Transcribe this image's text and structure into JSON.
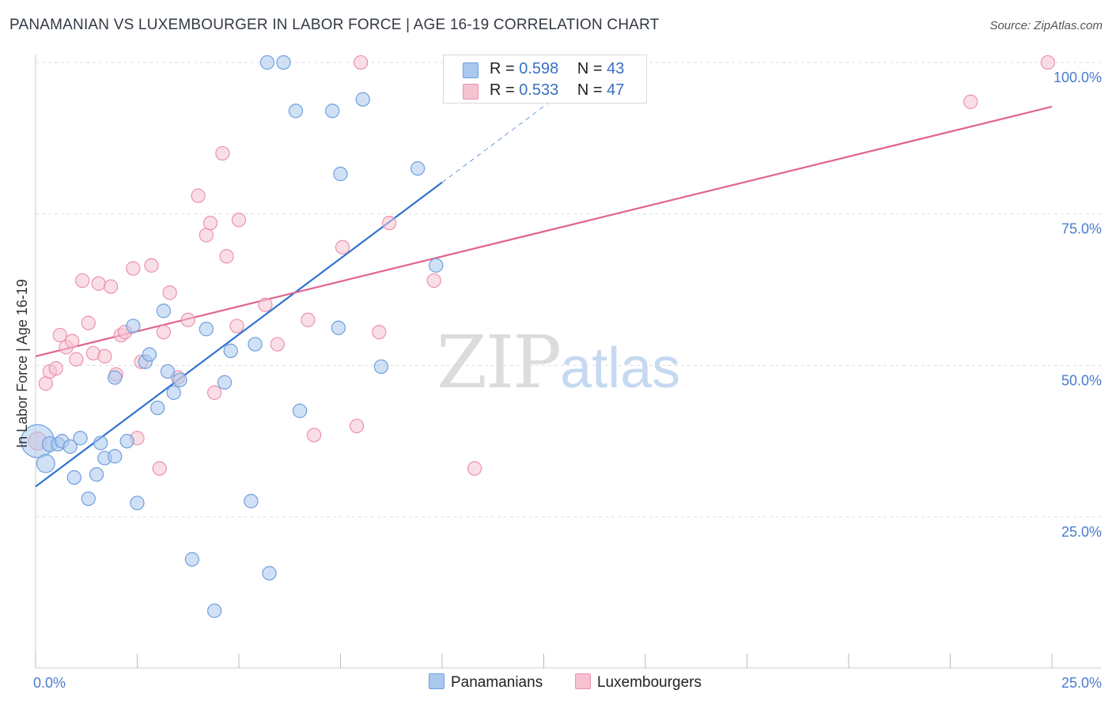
{
  "header": {
    "title": "PANAMANIAN VS LUXEMBOURGER IN LABOR FORCE | AGE 16-19 CORRELATION CHART",
    "source": "Source: ZipAtlas.com"
  },
  "watermark": {
    "zip": "ZIP",
    "atlas": "atlas"
  },
  "legend": {
    "rows": [
      {
        "r_label": "R = ",
        "r_value": "0.598",
        "n_label": "N = ",
        "n_value": "43",
        "color": "#a9c8ef"
      },
      {
        "r_label": "R = ",
        "r_value": "0.533",
        "n_label": "N = ",
        "n_value": "47",
        "color": "#f6bfd0"
      }
    ]
  },
  "bottom_legend": {
    "series1": "Panamanians",
    "series2": "Luxembourgers"
  },
  "colors": {
    "blue_fill": "#a9c8ef",
    "blue_stroke": "#6f9fdc",
    "blue_line": "#2f72d0",
    "pink_fill": "#f6c2d2",
    "pink_stroke": "#ec92ad",
    "pink_line": "#e0648f",
    "axis_tick": "#4a7bd0",
    "grid": "#dddddd"
  },
  "chart_data": {
    "type": "scatter",
    "title": "PANAMANIAN VS LUXEMBOURGER IN LABOR FORCE | AGE 16-19 CORRELATION CHART",
    "xlabel": "",
    "ylabel": "In Labor Force | Age 16-19",
    "xlim": [
      0,
      25
    ],
    "ylim": [
      0,
      105
    ],
    "x_tick_labels": [
      "0.0%",
      "25.0%"
    ],
    "y_ticks": [
      25,
      50,
      75,
      100
    ],
    "y_tick_labels": [
      "25.0%",
      "50.0%",
      "75.0%",
      "100.0%"
    ],
    "series": [
      {
        "name": "Panamanians",
        "R": 0.598,
        "N": 43,
        "trend": {
          "x0": 0,
          "y0": 30.0,
          "x1": 10,
          "y1": 80.2,
          "dash_to_x": 13
        },
        "points": [
          [
            0.05,
            37.5,
            22
          ],
          [
            0.25,
            33.8,
            12
          ],
          [
            0.35,
            37.0,
            10
          ],
          [
            0.55,
            37.0,
            9
          ],
          [
            0.65,
            37.5,
            9
          ],
          [
            0.85,
            36.6,
            9
          ],
          [
            0.95,
            31.5,
            9
          ],
          [
            1.1,
            38.0,
            9
          ],
          [
            1.3,
            28.0,
            9
          ],
          [
            1.5,
            32.0,
            9
          ],
          [
            1.6,
            37.2,
            9
          ],
          [
            1.7,
            34.7,
            9
          ],
          [
            1.95,
            35.0,
            9
          ],
          [
            1.95,
            48.0,
            9
          ],
          [
            2.25,
            37.5,
            9
          ],
          [
            2.4,
            56.5,
            9
          ],
          [
            2.5,
            27.3,
            9
          ],
          [
            2.7,
            50.6,
            9
          ],
          [
            2.8,
            51.8,
            9
          ],
          [
            3.0,
            43.0,
            9
          ],
          [
            3.15,
            59.0,
            9
          ],
          [
            3.25,
            49.0,
            9
          ],
          [
            3.4,
            45.5,
            9
          ],
          [
            3.55,
            47.6,
            9
          ],
          [
            3.85,
            18.0,
            9
          ],
          [
            4.2,
            56.0,
            9
          ],
          [
            4.4,
            9.5,
            9
          ],
          [
            4.65,
            47.2,
            9
          ],
          [
            4.8,
            52.4,
            9
          ],
          [
            5.3,
            27.6,
            9
          ],
          [
            5.4,
            53.5,
            9
          ],
          [
            5.7,
            100.0,
            9
          ],
          [
            5.75,
            15.7,
            9
          ],
          [
            6.1,
            100.0,
            9
          ],
          [
            6.4,
            92.0,
            9
          ],
          [
            6.5,
            42.5,
            9
          ],
          [
            7.3,
            92.0,
            9
          ],
          [
            7.45,
            56.2,
            9
          ],
          [
            7.5,
            81.6,
            9
          ],
          [
            8.05,
            93.9,
            9
          ],
          [
            8.5,
            49.8,
            9
          ],
          [
            9.4,
            82.5,
            9
          ],
          [
            9.85,
            66.5,
            9
          ]
        ]
      },
      {
        "name": "Luxembourgers",
        "R": 0.533,
        "N": 47,
        "trend": {
          "x0": 0,
          "y0": 51.5,
          "x1": 25,
          "y1": 92.7
        },
        "points": [
          [
            0.05,
            37.5,
            12
          ],
          [
            0.25,
            47.0,
            9
          ],
          [
            0.35,
            49.0,
            9
          ],
          [
            0.5,
            49.5,
            9
          ],
          [
            0.6,
            55.0,
            9
          ],
          [
            0.75,
            53.0,
            9
          ],
          [
            0.9,
            54.0,
            9
          ],
          [
            1.0,
            51.0,
            9
          ],
          [
            1.15,
            64.0,
            9
          ],
          [
            1.3,
            57.0,
            9
          ],
          [
            1.42,
            52.0,
            9
          ],
          [
            1.55,
            63.5,
            9
          ],
          [
            1.7,
            51.5,
            9
          ],
          [
            1.85,
            63.0,
            9
          ],
          [
            1.98,
            48.5,
            9
          ],
          [
            2.1,
            55.0,
            9
          ],
          [
            2.2,
            55.5,
            9
          ],
          [
            2.4,
            66.0,
            9
          ],
          [
            2.5,
            38.0,
            9
          ],
          [
            2.6,
            50.6,
            9
          ],
          [
            2.85,
            66.5,
            9
          ],
          [
            3.05,
            33.0,
            9
          ],
          [
            3.15,
            55.5,
            9
          ],
          [
            3.3,
            62.0,
            9
          ],
          [
            3.5,
            48.0,
            9
          ],
          [
            3.75,
            57.5,
            9
          ],
          [
            4.0,
            78.0,
            9
          ],
          [
            4.2,
            71.5,
            9
          ],
          [
            4.3,
            73.5,
            9
          ],
          [
            4.4,
            45.5,
            9
          ],
          [
            4.6,
            85.0,
            9
          ],
          [
            4.7,
            68.0,
            9
          ],
          [
            4.95,
            56.5,
            9
          ],
          [
            5.0,
            74.0,
            9
          ],
          [
            5.65,
            60.0,
            9
          ],
          [
            5.95,
            53.5,
            9
          ],
          [
            6.7,
            57.5,
            9
          ],
          [
            6.85,
            38.5,
            9
          ],
          [
            7.55,
            69.5,
            9
          ],
          [
            7.9,
            40.0,
            9
          ],
          [
            8.0,
            100.0,
            9
          ],
          [
            8.45,
            55.5,
            9
          ],
          [
            8.7,
            73.5,
            9
          ],
          [
            9.8,
            64.0,
            9
          ],
          [
            10.8,
            33.0,
            9
          ],
          [
            23.0,
            93.5,
            9
          ],
          [
            24.9,
            100.0,
            9
          ]
        ]
      }
    ]
  }
}
